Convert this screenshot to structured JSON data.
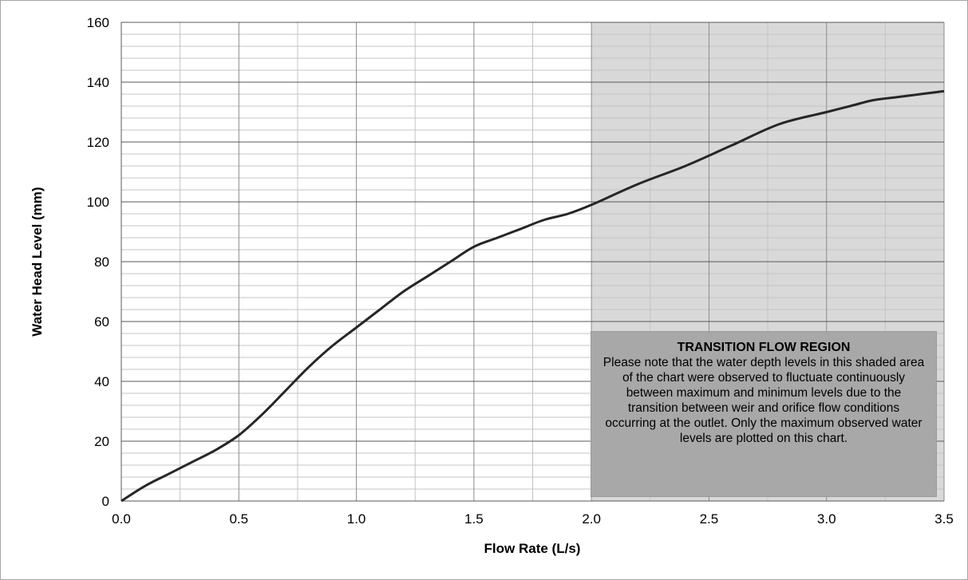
{
  "chart_data": {
    "type": "line",
    "xlabel": "Flow Rate (L/s)",
    "ylabel": "Water Head Level (mm)",
    "xlim": [
      0,
      3.5
    ],
    "ylim": [
      0,
      160
    ],
    "x_ticks": [
      "0.0",
      "0.5",
      "1.0",
      "1.5",
      "2.0",
      "2.5",
      "3.0",
      "3.5"
    ],
    "y_ticks": [
      "0",
      "20",
      "40",
      "60",
      "80",
      "100",
      "120",
      "140",
      "160"
    ],
    "grid": true,
    "series": [
      {
        "x": [
          0.0,
          0.1,
          0.2,
          0.3,
          0.4,
          0.5,
          0.6,
          0.7,
          0.8,
          0.9,
          1.0,
          1.1,
          1.2,
          1.3,
          1.4,
          1.5,
          1.6,
          1.7,
          1.8,
          1.9,
          2.0,
          2.2,
          2.4,
          2.6,
          2.8,
          3.0,
          3.1,
          3.2,
          3.3,
          3.4,
          3.5
        ],
        "values": [
          0,
          5,
          9,
          13,
          17,
          22,
          29,
          37,
          45,
          52,
          58,
          64,
          70,
          75,
          80,
          85,
          88,
          91,
          94,
          96,
          99,
          106,
          112,
          119,
          126,
          130,
          132,
          134,
          135,
          136,
          137
        ]
      }
    ],
    "shaded_region": {
      "x_start": 2.0,
      "x_end": 3.5,
      "color": "#d9d9d9"
    },
    "annotation": {
      "title": "TRANSITION FLOW REGION",
      "text": "Please note that the water depth levels in this shaded area of the chart were observed to fluctuate continuously between maximum and minimum levels due to the transition between weir and orifice flow conditions occurring at the outlet. Only the maximum observed water levels are plotted on this chart."
    }
  }
}
